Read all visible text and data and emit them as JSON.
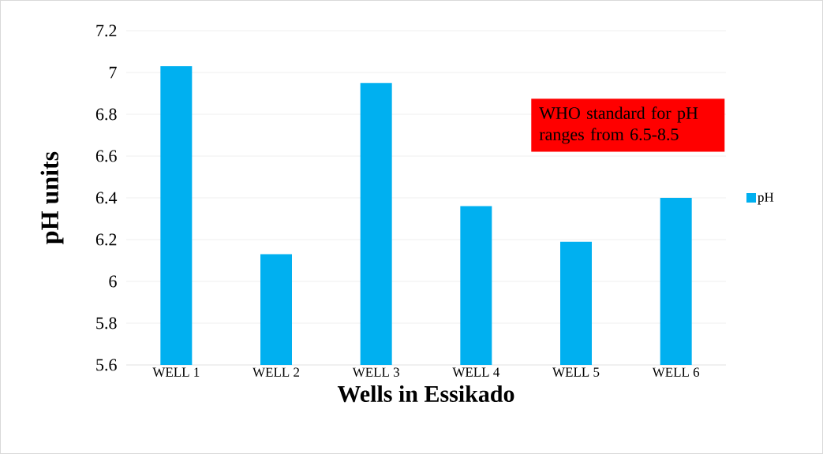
{
  "chart_data": {
    "type": "bar",
    "xlabel": "Wells in Essikado",
    "ylabel": "pH units",
    "categories": [
      "WELL 1",
      "WELL 2",
      "WELL 3",
      "WELL 4",
      "WELL 5",
      "WELL 6"
    ],
    "series": [
      {
        "name": "pH",
        "color": "#00b0f0",
        "values": [
          7.03,
          6.13,
          6.95,
          6.36,
          6.19,
          6.4
        ]
      }
    ],
    "ylim": [
      5.6,
      7.2
    ],
    "yticks": [
      5.6,
      5.8,
      6,
      6.2,
      6.4,
      6.6,
      6.8,
      7,
      7.2
    ],
    "grid": "y",
    "legend": "right",
    "annotations": [
      "WHO standard for pH ranges from 6.5-8.5"
    ]
  }
}
